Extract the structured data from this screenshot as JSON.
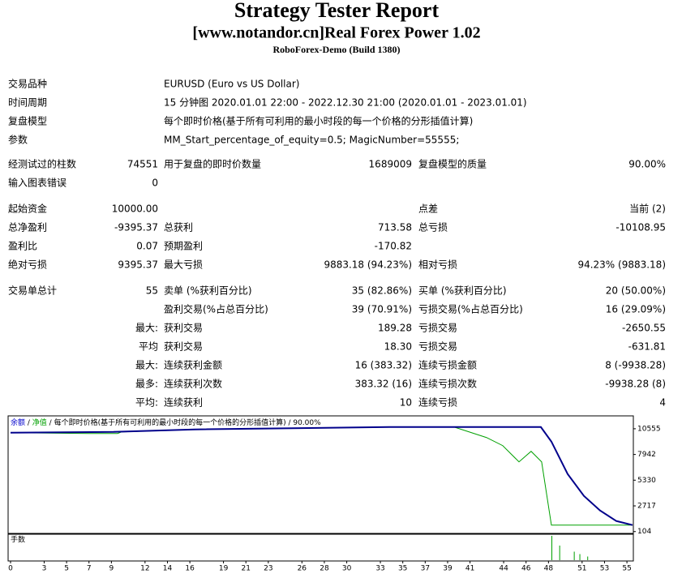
{
  "header": {
    "title": "Strategy Tester Report",
    "subtitle": "[www.notandor.cn]Real Forex Power 1.02",
    "build": "RoboForex-Demo (Build 1380)"
  },
  "info": [
    [
      "交易品种",
      "EURUSD (Euro vs US Dollar)"
    ],
    [
      "时间周期",
      "15 分钟图 2020.01.01 22:00 - 2022.12.30 21:00 (2020.01.01 - 2023.01.01)"
    ],
    [
      "复盘模型",
      "每个即时价格(基于所有可利用的最小时段的每一个价格的分形插值计算)"
    ],
    [
      "参数",
      "MM_Start_percentage_of_equity=0.5; MagicNumber=55555;"
    ]
  ],
  "stats": [
    [
      "经测试过的柱数",
      "74551",
      "用于复盘的即时价数量",
      "1689009",
      "复盘模型的质量",
      "90.00%"
    ],
    [
      "输入图表错误",
      "0"
    ],
    [
      "起始资金",
      "10000.00",
      null,
      null,
      "点差",
      "当前 (2)"
    ],
    [
      "总净盈利",
      "-9395.37",
      "总获利",
      "713.58",
      "总亏损",
      "-10108.95"
    ],
    [
      "盈利比",
      "0.07",
      "预期盈利",
      "-170.82"
    ],
    [
      "绝对亏损",
      "9395.37",
      "最大亏损",
      "9883.18 (94.23%)",
      "相对亏损",
      "94.23% (9883.18)"
    ],
    [
      "交易单总计",
      "55",
      "卖单 (%获利百分比)",
      "35 (82.86%)",
      "买单 (%获利百分比)",
      "20 (50.00%)"
    ],
    [
      null,
      null,
      "盈利交易(%占总百分比)",
      "39 (70.91%)",
      "亏损交易(%占总百分比)",
      "16 (29.09%)"
    ],
    [
      null,
      "最大:",
      "获利交易",
      "189.28",
      "亏损交易",
      "-2650.55"
    ],
    [
      null,
      "平均",
      "获利交易",
      "18.30",
      "亏损交易",
      "-631.81"
    ],
    [
      null,
      "最大:",
      "连续获利金额",
      "16 (383.32)",
      "连续亏损金额",
      "8 (-9938.28)"
    ],
    [
      null,
      "最多:",
      "连续获利次数",
      "383.32 (16)",
      "连续亏损次数",
      "-9938.28 (8)"
    ],
    [
      null,
      "平均:",
      "连续获利",
      "10",
      "连续亏损",
      "4"
    ]
  ],
  "chart_data": {
    "type": "line",
    "legend_separator": " / ",
    "model": "每个即时价格(基于所有可利用的最小时段的每一个价格的分形插值计算)",
    "quality": "90.00%",
    "lots_label": "手数",
    "xlim": [
      0,
      55.5
    ],
    "xticks": [
      0,
      3,
      5,
      7,
      9,
      12,
      14,
      16,
      19,
      21,
      23,
      26,
      28,
      30,
      33,
      35,
      37,
      39,
      41,
      44,
      46,
      48,
      51,
      53,
      55
    ],
    "ylim": [
      0,
      11700
    ],
    "yticks": [
      104,
      2717,
      5330,
      7942,
      10555
    ],
    "series": [
      {
        "name": "余额",
        "color": "#00008b",
        "x": [
          0,
          9.19,
          16.43,
          33.79,
          47.32,
          48.26,
          49.71,
          51.16,
          52.6,
          54.05,
          55.5
        ],
        "values": [
          10157,
          10239,
          10486,
          10733,
          10733,
          9250,
          5955,
          3731,
          2249,
          1178,
          766
        ]
      },
      {
        "name": "净值",
        "color": "#00a000",
        "x": [
          0,
          7.02,
          9.55,
          9.9,
          16.43,
          33.79,
          39.58,
          42.47,
          43.92,
          45.37,
          46.45,
          47.39,
          48.26,
          55.5
        ],
        "values": [
          10157,
          10075,
          10075,
          10239,
          10486,
          10733,
          10733,
          9662,
          8838,
          7190,
          8261,
          7190,
          766,
          766
        ]
      }
    ],
    "lots": {
      "x": [
        48.3,
        49.0,
        50.3,
        50.8,
        51.5
      ],
      "values": [
        1,
        0.6,
        0.35,
        0.25,
        0.15
      ],
      "ylim": [
        0,
        1
      ],
      "color": "#00a000"
    }
  }
}
